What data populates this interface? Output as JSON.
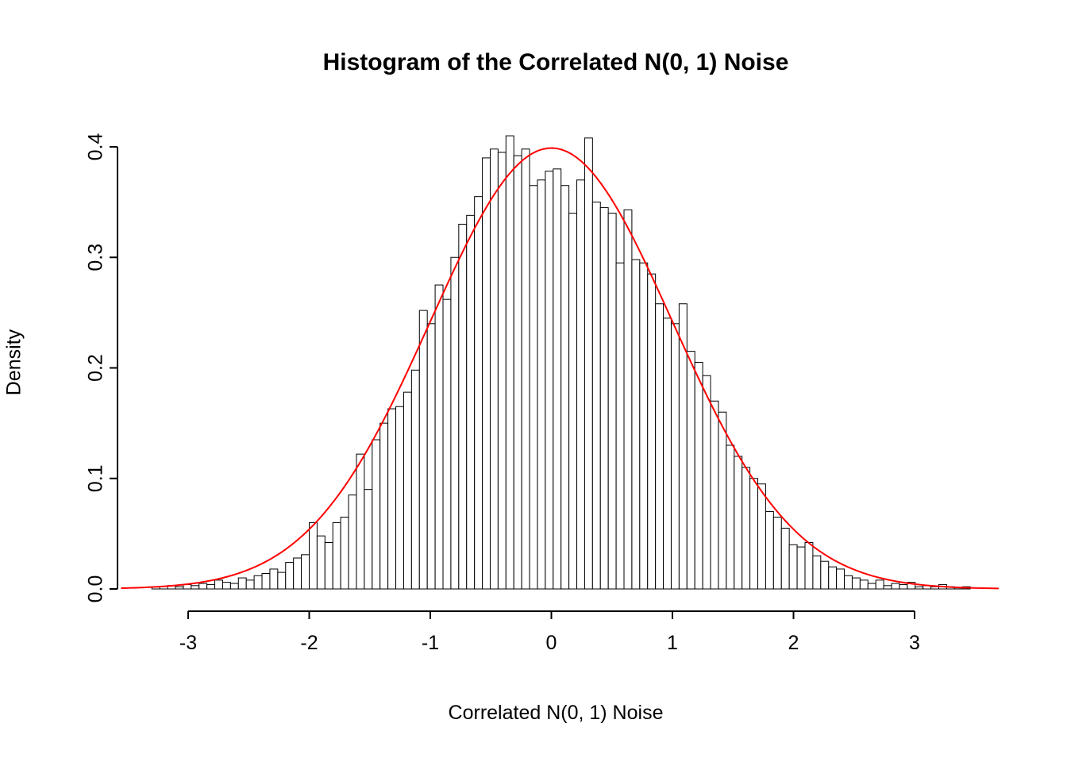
{
  "chart_data": {
    "type": "bar",
    "subtype": "histogram",
    "title": "Histogram of the Correlated N(0, 1) Noise",
    "xlabel": "Correlated N(0, 1) Noise",
    "ylabel": "Density",
    "xlim": [
      -3.55,
      3.72
    ],
    "ylim": [
      0,
      0.41
    ],
    "x_ticks": [
      -3,
      -2,
      -1,
      0,
      1,
      2,
      3
    ],
    "x_tick_labels": [
      "-3",
      "-2",
      "-1",
      "0",
      "1",
      "2",
      "3"
    ],
    "y_ticks": [
      0.0,
      0.1,
      0.2,
      0.3,
      0.4
    ],
    "y_tick_labels": [
      "0.0",
      "0.1",
      "0.2",
      "0.3",
      "0.4"
    ],
    "grid": false,
    "legend": "none",
    "bar_fill": "#ffffff",
    "bar_stroke": "#000000",
    "axis_color": "#000000",
    "background_color": "#ffffff",
    "histogram": {
      "bin_start": -3.3,
      "bin_width": 0.065,
      "densities": [
        0.002,
        0.0,
        0.003,
        0.002,
        0.004,
        0.003,
        0.005,
        0.004,
        0.008,
        0.006,
        0.005,
        0.01,
        0.008,
        0.012,
        0.014,
        0.018,
        0.015,
        0.024,
        0.028,
        0.031,
        0.06,
        0.048,
        0.042,
        0.06,
        0.065,
        0.085,
        0.122,
        0.09,
        0.135,
        0.15,
        0.163,
        0.165,
        0.178,
        0.198,
        0.252,
        0.24,
        0.275,
        0.262,
        0.3,
        0.33,
        0.338,
        0.355,
        0.39,
        0.398,
        0.395,
        0.41,
        0.392,
        0.398,
        0.365,
        0.37,
        0.378,
        0.38,
        0.365,
        0.34,
        0.37,
        0.408,
        0.35,
        0.345,
        0.34,
        0.295,
        0.343,
        0.298,
        0.295,
        0.285,
        0.258,
        0.245,
        0.24,
        0.258,
        0.215,
        0.205,
        0.193,
        0.17,
        0.16,
        0.13,
        0.12,
        0.11,
        0.1,
        0.095,
        0.07,
        0.065,
        0.055,
        0.04,
        0.038,
        0.042,
        0.03,
        0.025,
        0.02,
        0.018,
        0.012,
        0.01,
        0.008,
        0.005,
        0.008,
        0.003,
        0.005,
        0.004,
        0.006,
        0.002,
        0.003,
        0.002,
        0.004,
        0.002,
        0.001,
        0.002
      ]
    },
    "curve": {
      "name": "normal-density-curve",
      "distribution": "normal",
      "mean": 0,
      "sd": 1,
      "color": "#ff0000",
      "line_width": 2
    }
  }
}
